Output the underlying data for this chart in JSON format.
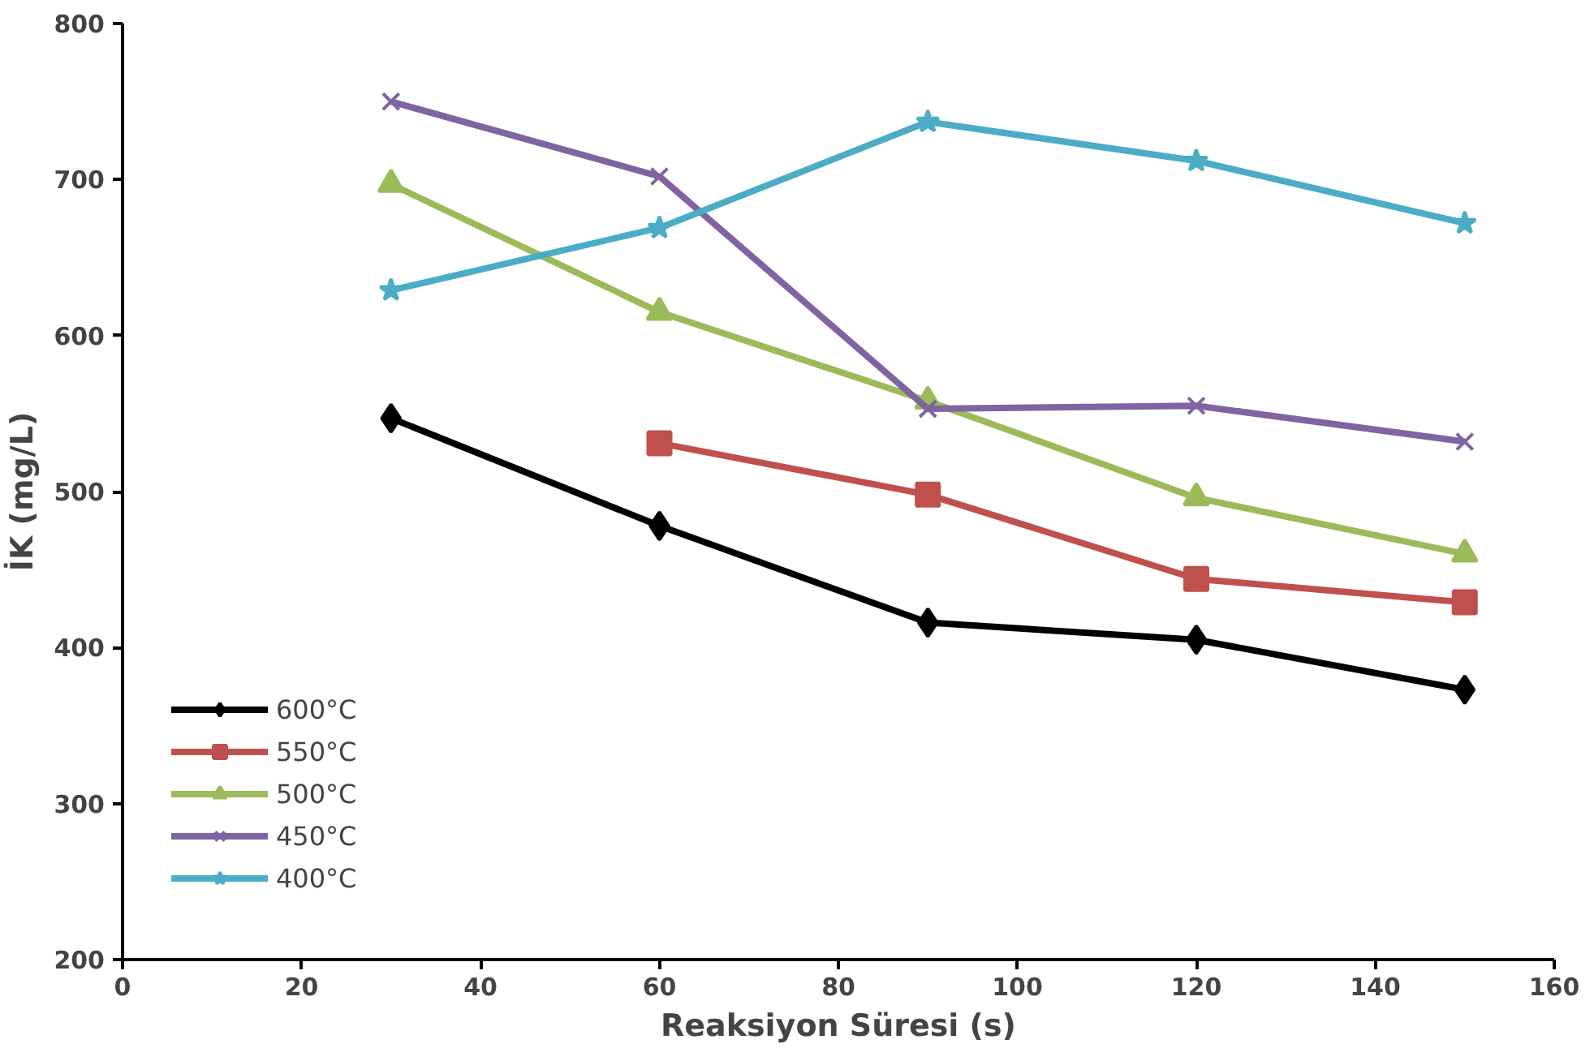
{
  "chart_data": {
    "type": "line",
    "xlabel": "Reaksiyon Süresi (s)",
    "ylabel": "İK (mg/L)",
    "x": [
      30,
      60,
      90,
      120,
      150
    ],
    "series": [
      {
        "name": "600°C",
        "color": "#000000",
        "marker": "diamond",
        "values": [
          547,
          478,
          416,
          405,
          373
        ]
      },
      {
        "name": "550°C",
        "color": "#c0504d",
        "marker": "square",
        "values": [
          null,
          531,
          498,
          444,
          429
        ]
      },
      {
        "name": "500°C",
        "color": "#9bbb59",
        "marker": "triangle",
        "values": [
          697,
          615,
          558,
          496,
          460
        ]
      },
      {
        "name": "450°C",
        "color": "#8064a2",
        "marker": "cross",
        "values": [
          750,
          702,
          553,
          555,
          532
        ]
      },
      {
        "name": "400°C",
        "color": "#4bacc6",
        "marker": "star",
        "values": [
          629,
          669,
          737,
          712,
          672
        ]
      }
    ],
    "xlim": [
      0,
      160
    ],
    "xticks": [
      0,
      20,
      40,
      60,
      80,
      100,
      120,
      140,
      160
    ],
    "ylim": [
      200,
      800
    ],
    "yticks": [
      200,
      300,
      400,
      500,
      600,
      700,
      800
    ],
    "grid": false,
    "legend": "bottom left"
  }
}
